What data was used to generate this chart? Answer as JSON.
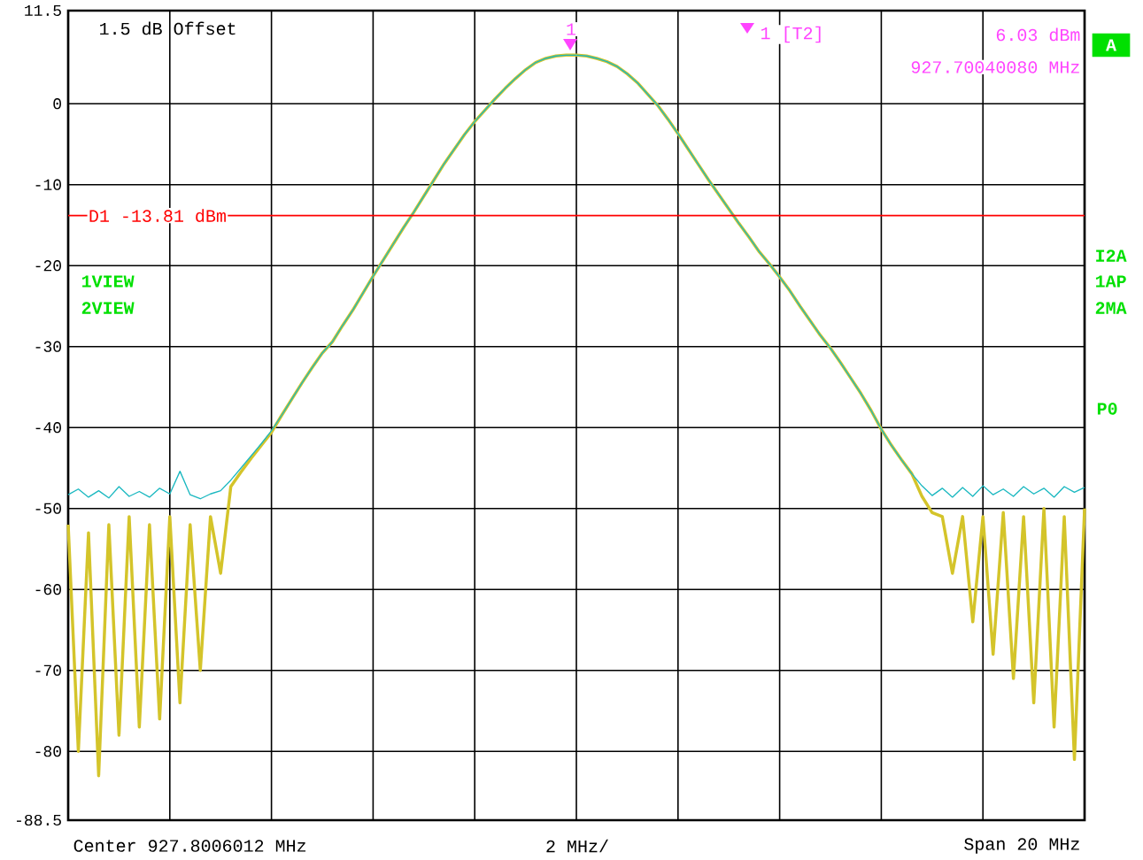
{
  "chart_data": {
    "type": "line",
    "categories": [
      null,
      null,
      null,
      null,
      null,
      null,
      null,
      null,
      null,
      null,
      null,
      null,
      null,
      null,
      null,
      null,
      null,
      null,
      null,
      null,
      null,
      null,
      null,
      null,
      null,
      null,
      null,
      null,
      null,
      null,
      null,
      null,
      null,
      null,
      null,
      null,
      null,
      null,
      null,
      null,
      null,
      null,
      null,
      null,
      null,
      null,
      null,
      null,
      null,
      null,
      null,
      null,
      null,
      null,
      null,
      null,
      null,
      null,
      null,
      null,
      null,
      null,
      null,
      null,
      null,
      null,
      null,
      null,
      null,
      null,
      null,
      null,
      null,
      null,
      null,
      null,
      null,
      null,
      null,
      null,
      null,
      null,
      null,
      null,
      null,
      null,
      null,
      null,
      null,
      null,
      null,
      null,
      null,
      null,
      null,
      null,
      null,
      null,
      null,
      null,
      null
    ],
    "ylim": [
      -88.5,
      11.5
    ],
    "yticks": [
      11.5,
      0,
      -10,
      -20,
      -30,
      -40,
      -50,
      -60,
      -70,
      -80,
      -88.5
    ],
    "tick_labels": "y",
    "grid": true,
    "series": [
      {
        "color": "#1ab8c0",
        "values": [
          -48.3,
          -47.6,
          -48.6,
          -47.8,
          -48.7,
          -47.3,
          -48.5,
          -47.9,
          -48.6,
          -47.5,
          -48.2,
          -45.4,
          -48.3,
          -48.8,
          -48.2,
          -47.8,
          -46.5,
          -45,
          -43.5,
          -42,
          -40.4,
          -38.5,
          -36.5,
          -34.5,
          -32.6,
          -30.8,
          -29.4,
          -27.4,
          -25.5,
          -23.4,
          -21.3,
          -19.3,
          -17.3,
          -15.3,
          -13.4,
          -11.4,
          -9.4,
          -7.4,
          -5.6,
          -3.8,
          -2.2,
          -0.8,
          0.6,
          1.9,
          3.1,
          4.2,
          5.1,
          5.6,
          5.9,
          6.0,
          6.0,
          5.9,
          5.6,
          5.2,
          4.6,
          3.7,
          2.6,
          1.2,
          -0.2,
          -1.9,
          -3.7,
          -5.6,
          -7.5,
          -9.4,
          -11.2,
          -13.0,
          -14.8,
          -16.5,
          -18.3,
          -19.8,
          -21.4,
          -23.1,
          -25,
          -26.8,
          -28.6,
          -30.2,
          -32,
          -33.9,
          -35.8,
          -37.9,
          -40.2,
          -42.2,
          -44,
          -45.7,
          -47.2,
          -48.4,
          -47.5,
          -48.6,
          -47.4,
          -48.5,
          -47.2,
          -48.3,
          -47.6,
          -48.5,
          -47.3,
          -48.2,
          -47.5,
          -48.6,
          -47.3,
          -48.0,
          -47.4
        ]
      },
      {
        "color": "#d4c42a",
        "values": [
          -52,
          -80,
          -53,
          -83,
          -52,
          -78,
          -51,
          -77,
          -52,
          -76,
          -51,
          -74,
          -52,
          -70,
          -51,
          -58,
          -47.3,
          -45.5,
          -43.8,
          -42.2,
          -40.6,
          -38.5,
          -36.5,
          -34.5,
          -32.6,
          -30.8,
          -29.4,
          -27.4,
          -25.5,
          -23.4,
          -21.3,
          -19.3,
          -17.3,
          -15.3,
          -13.4,
          -11.4,
          -9.4,
          -7.4,
          -5.6,
          -3.8,
          -2.2,
          -0.8,
          0.6,
          1.9,
          3.1,
          4.2,
          5.1,
          5.6,
          5.9,
          6.0,
          6.0,
          5.9,
          5.6,
          5.2,
          4.6,
          3.7,
          2.6,
          1.2,
          -0.2,
          -1.9,
          -3.7,
          -5.6,
          -7.5,
          -9.4,
          -11.2,
          -13.0,
          -14.8,
          -16.5,
          -18.3,
          -19.8,
          -21.4,
          -23.1,
          -25,
          -26.8,
          -28.6,
          -30.2,
          -32,
          -33.9,
          -35.8,
          -37.9,
          -40.2,
          -42.2,
          -44,
          -45.7,
          -48.5,
          -50.5,
          -51,
          -58,
          -51,
          -64,
          -51,
          -68,
          -50.5,
          -71,
          -51,
          -74,
          -50,
          -77,
          -51,
          -81,
          -50
        ]
      }
    ],
    "ref_lines": [
      {
        "axis": "y",
        "value": -13.81,
        "label": "D1 -13.81 dBm",
        "color": "#ff0000"
      }
    ],
    "annotations": [
      "1.5 dB Offset",
      "1 [T2]",
      "6.03 dBm",
      "927.70040080 MHz",
      "A",
      "1VIEW",
      "2VIEW",
      "I2A",
      "1AP",
      "2MA",
      "P0",
      "Center 927.8006012 MHz",
      "2 MHz/",
      "Span 20 MHz",
      "1"
    ]
  }
}
